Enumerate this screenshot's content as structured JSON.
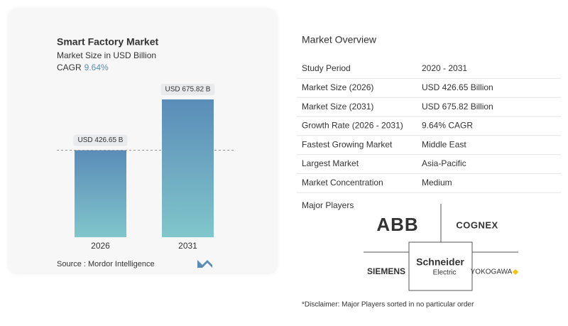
{
  "chart_data": {
    "type": "bar",
    "title": "Smart Factory Market",
    "subtitle": "Market Size in USD Billion",
    "cagr_label": "CAGR",
    "cagr": "9.64%",
    "categories": [
      "2026",
      "2031"
    ],
    "values": [
      426.65,
      675.82
    ],
    "value_labels": [
      "USD 426.65 B",
      "USD 675.82 B"
    ],
    "color": "#5a8cb8",
    "source": "Source :  Mordor Intelligence"
  },
  "overview": {
    "title": "Market Overview",
    "rows": [
      [
        "Study Period",
        "2020 - 2031"
      ],
      [
        "Market Size (2026)",
        "USD 426.65 Billion"
      ],
      [
        "Market Size (2031)",
        "USD 675.82 Billion"
      ],
      [
        "Growth Rate (2026 - 2031)",
        "9.64% CAGR"
      ],
      [
        "Fastest Growing Market",
        "Middle East"
      ],
      [
        "Largest Market",
        "Asia-Pacific"
      ],
      [
        "Market Concentration",
        "Medium"
      ]
    ]
  },
  "major_players": {
    "title": "Major Players",
    "abb": "ABB",
    "cognex": "COGNEX",
    "siemens": "SIEMENS",
    "schneider": [
      "Schneider",
      "Electric"
    ],
    "yokogawa": "YOKOGAWA"
  },
  "disclaimer": "*Disclaimer: Major Players sorted in no particular order"
}
